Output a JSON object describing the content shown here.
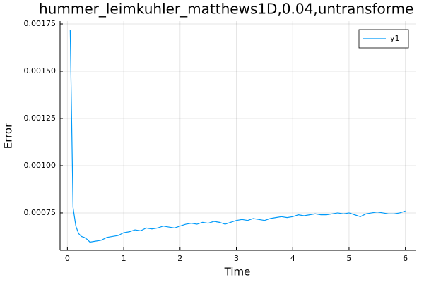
{
  "chart_data": {
    "type": "line",
    "title": "hummer_leimkuhler_matthews1D,0.04,untransforme",
    "x_label": "Time",
    "y_label": "Error",
    "x": [
      0.05,
      0.1,
      0.15,
      0.2,
      0.25,
      0.3,
      0.35,
      0.4,
      0.5,
      0.6,
      0.7,
      0.8,
      0.9,
      1.0,
      1.1,
      1.2,
      1.3,
      1.4,
      1.5,
      1.6,
      1.7,
      1.8,
      1.9,
      2.0,
      2.1,
      2.2,
      2.3,
      2.4,
      2.5,
      2.6,
      2.7,
      2.8,
      2.9,
      3.0,
      3.1,
      3.2,
      3.3,
      3.4,
      3.5,
      3.6,
      3.7,
      3.8,
      3.9,
      4.0,
      4.1,
      4.2,
      4.3,
      4.4,
      4.5,
      4.6,
      4.7,
      4.8,
      4.9,
      5.0,
      5.1,
      5.2,
      5.3,
      5.4,
      5.5,
      5.6,
      5.7,
      5.8,
      5.9,
      6.0
    ],
    "series": [
      {
        "name": "y1",
        "color": "#009af9",
        "values": [
          0.00172,
          0.00078,
          0.00068,
          0.00064,
          0.000625,
          0.00062,
          0.00061,
          0.000595,
          0.0006,
          0.000605,
          0.00062,
          0.000625,
          0.00063,
          0.000645,
          0.00065,
          0.00066,
          0.000655,
          0.00067,
          0.000665,
          0.00067,
          0.00068,
          0.000675,
          0.00067,
          0.00068,
          0.00069,
          0.000695,
          0.00069,
          0.0007,
          0.000695,
          0.000705,
          0.0007,
          0.00069,
          0.0007,
          0.00071,
          0.000715,
          0.00071,
          0.00072,
          0.000715,
          0.00071,
          0.00072,
          0.000725,
          0.00073,
          0.000725,
          0.00073,
          0.00074,
          0.000735,
          0.00074,
          0.000745,
          0.00074,
          0.00074,
          0.000745,
          0.00075,
          0.000745,
          0.00075,
          0.00074,
          0.00073,
          0.000745,
          0.00075,
          0.000755,
          0.00075,
          0.000745,
          0.000745,
          0.00075,
          0.00076
        ]
      }
    ],
    "xlim": [
      -0.13,
      6.18
    ],
    "xticks": [
      0,
      1,
      2,
      3,
      4,
      5,
      6
    ],
    "ylim": [
      0.000552,
      0.001765
    ],
    "yticks": [
      0.00075,
      {
        "value": 0.001,
        "label": "0.00100"
      },
      0.00125,
      {
        "value": 0.0015,
        "label": "0.00150"
      },
      0.00175
    ],
    "grid": true,
    "legend": "top-right"
  }
}
